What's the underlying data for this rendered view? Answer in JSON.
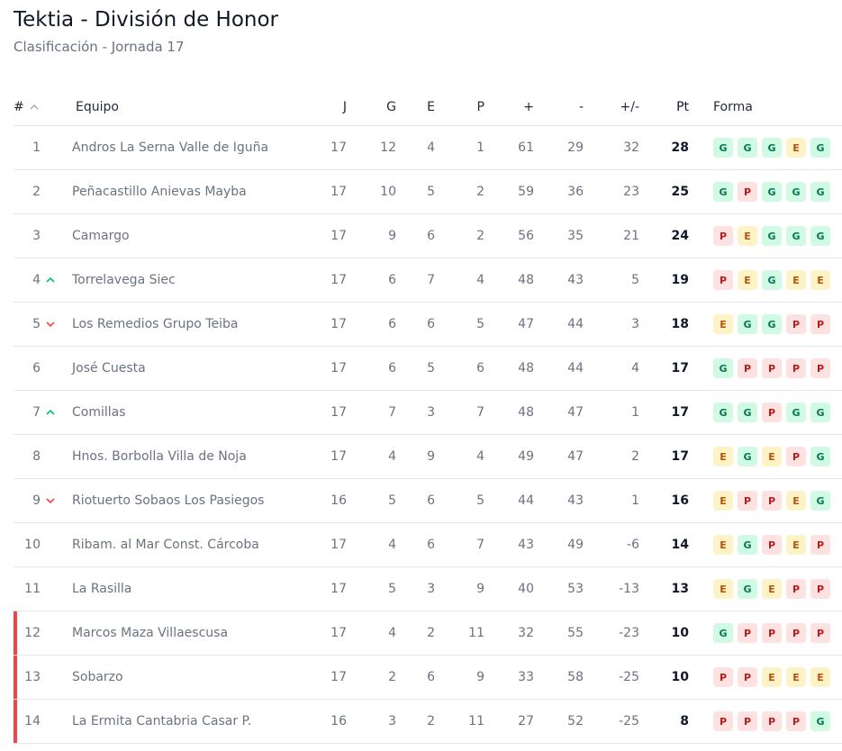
{
  "page": {
    "title": "Tektia - División de Honor",
    "subtitle": "Clasificación - Jornada 17"
  },
  "table": {
    "headers": {
      "pos": "#",
      "team": "Equipo",
      "j": "J",
      "g": "G",
      "e": "E",
      "p": "P",
      "plus": "+",
      "minus": "-",
      "diff": "+/-",
      "pts": "Pt",
      "form": "Forma"
    },
    "colors": {
      "up": "#10b981",
      "down": "#ef4444",
      "relegation": "#ef4444",
      "win": "#d1fae5",
      "loss": "#fee2e2",
      "draw": "#fef3c7"
    },
    "rows": [
      {
        "pos": "1",
        "move": "",
        "team": "Andros La Serna Valle de Iguña",
        "j": "17",
        "g": "12",
        "e": "4",
        "p": "1",
        "plus": "61",
        "minus": "29",
        "diff": "32",
        "pts": "28",
        "form": [
          "G",
          "G",
          "G",
          "E",
          "G"
        ],
        "relegation": false
      },
      {
        "pos": "2",
        "move": "",
        "team": "Peñacastillo Anievas Mayba",
        "j": "17",
        "g": "10",
        "e": "5",
        "p": "2",
        "plus": "59",
        "minus": "36",
        "diff": "23",
        "pts": "25",
        "form": [
          "G",
          "P",
          "G",
          "G",
          "G"
        ],
        "relegation": false
      },
      {
        "pos": "3",
        "move": "",
        "team": "Camargo",
        "j": "17",
        "g": "9",
        "e": "6",
        "p": "2",
        "plus": "56",
        "minus": "35",
        "diff": "21",
        "pts": "24",
        "form": [
          "P",
          "E",
          "G",
          "G",
          "G"
        ],
        "relegation": false
      },
      {
        "pos": "4",
        "move": "up",
        "team": "Torrelavega Siec",
        "j": "17",
        "g": "6",
        "e": "7",
        "p": "4",
        "plus": "48",
        "minus": "43",
        "diff": "5",
        "pts": "19",
        "form": [
          "P",
          "E",
          "G",
          "E",
          "E"
        ],
        "relegation": false
      },
      {
        "pos": "5",
        "move": "down",
        "team": "Los Remedios Grupo Teiba",
        "j": "17",
        "g": "6",
        "e": "6",
        "p": "5",
        "plus": "47",
        "minus": "44",
        "diff": "3",
        "pts": "18",
        "form": [
          "E",
          "G",
          "G",
          "P",
          "P"
        ],
        "relegation": false
      },
      {
        "pos": "6",
        "move": "",
        "team": "José Cuesta",
        "j": "17",
        "g": "6",
        "e": "5",
        "p": "6",
        "plus": "48",
        "minus": "44",
        "diff": "4",
        "pts": "17",
        "form": [
          "G",
          "P",
          "P",
          "P",
          "P"
        ],
        "relegation": false
      },
      {
        "pos": "7",
        "move": "up",
        "team": "Comillas",
        "j": "17",
        "g": "7",
        "e": "3",
        "p": "7",
        "plus": "48",
        "minus": "47",
        "diff": "1",
        "pts": "17",
        "form": [
          "G",
          "G",
          "P",
          "G",
          "G"
        ],
        "relegation": false
      },
      {
        "pos": "8",
        "move": "",
        "team": "Hnos. Borbolla Villa de Noja",
        "j": "17",
        "g": "4",
        "e": "9",
        "p": "4",
        "plus": "49",
        "minus": "47",
        "diff": "2",
        "pts": "17",
        "form": [
          "E",
          "G",
          "E",
          "P",
          "G"
        ],
        "relegation": false
      },
      {
        "pos": "9",
        "move": "down",
        "team": "Riotuerto Sobaos Los Pasiegos",
        "j": "16",
        "g": "5",
        "e": "6",
        "p": "5",
        "plus": "44",
        "minus": "43",
        "diff": "1",
        "pts": "16",
        "form": [
          "E",
          "P",
          "P",
          "E",
          "G"
        ],
        "relegation": false
      },
      {
        "pos": "10",
        "move": "",
        "team": "Ribam. al Mar Const. Cárcoba",
        "j": "17",
        "g": "4",
        "e": "6",
        "p": "7",
        "plus": "43",
        "minus": "49",
        "diff": "-6",
        "pts": "14",
        "form": [
          "E",
          "G",
          "P",
          "E",
          "P"
        ],
        "relegation": false
      },
      {
        "pos": "11",
        "move": "",
        "team": "La Rasilla",
        "j": "17",
        "g": "5",
        "e": "3",
        "p": "9",
        "plus": "40",
        "minus": "53",
        "diff": "-13",
        "pts": "13",
        "form": [
          "E",
          "G",
          "E",
          "P",
          "P"
        ],
        "relegation": false
      },
      {
        "pos": "12",
        "move": "",
        "team": "Marcos Maza Villaescusa",
        "j": "17",
        "g": "4",
        "e": "2",
        "p": "11",
        "plus": "32",
        "minus": "55",
        "diff": "-23",
        "pts": "10",
        "form": [
          "G",
          "P",
          "P",
          "P",
          "P"
        ],
        "relegation": true
      },
      {
        "pos": "13",
        "move": "",
        "team": "Sobarzo",
        "j": "17",
        "g": "2",
        "e": "6",
        "p": "9",
        "plus": "33",
        "minus": "58",
        "diff": "-25",
        "pts": "10",
        "form": [
          "P",
          "P",
          "E",
          "E",
          "E"
        ],
        "relegation": true
      },
      {
        "pos": "14",
        "move": "",
        "team": "La Ermita Cantabria Casar P.",
        "j": "16",
        "g": "3",
        "e": "2",
        "p": "11",
        "plus": "27",
        "minus": "52",
        "diff": "-25",
        "pts": "8",
        "form": [
          "P",
          "P",
          "P",
          "P",
          "G"
        ],
        "relegation": true
      }
    ]
  }
}
